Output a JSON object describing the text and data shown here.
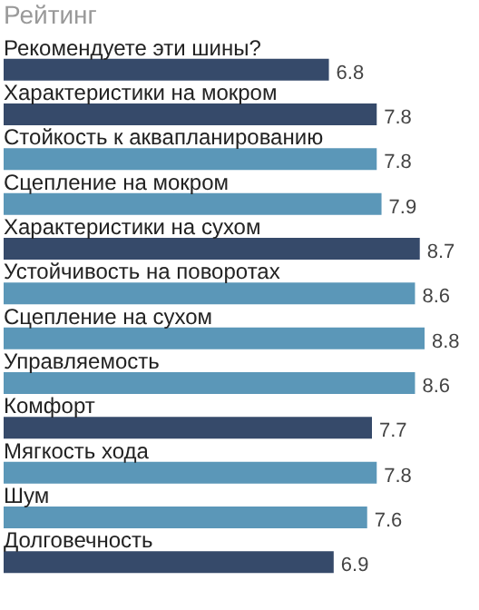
{
  "chart_data": {
    "type": "bar",
    "orientation": "horizontal",
    "title": "Рейтинг",
    "categories": [
      "Рекомендуете эти шины?",
      "Характеристики на мокром",
      "Стойкость к аквапланированию",
      "Сцепление на мокром",
      "Характеристики на сухом",
      "Устойчивость на поворотах",
      "Сцепление на сухом",
      "Управляемость",
      "Комфорт",
      "Мягкость хода",
      "Шум",
      "Долговечность"
    ],
    "values": [
      6.8,
      7.8,
      7.8,
      7.9,
      8.7,
      8.6,
      8.8,
      8.6,
      7.7,
      7.8,
      7.6,
      6.9
    ],
    "colors": [
      "#364a6a",
      "#364a6a",
      "#5b97b8",
      "#5b97b8",
      "#364a6a",
      "#5b97b8",
      "#5b97b8",
      "#5b97b8",
      "#364a6a",
      "#5b97b8",
      "#5b97b8",
      "#364a6a"
    ],
    "data_labels": true
  }
}
